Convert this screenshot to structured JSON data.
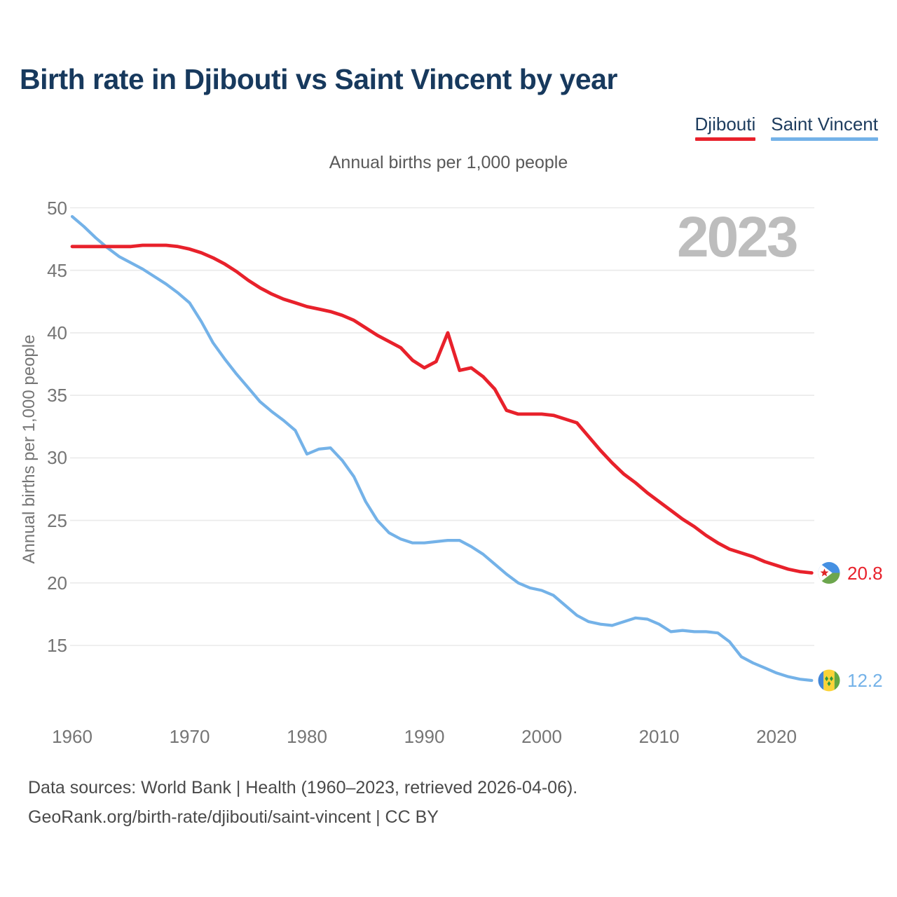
{
  "title": "Birth rate in Djibouti vs Saint Vincent by year",
  "subtitle": "Annual births per 1,000 people",
  "watermark": "2023",
  "legend": [
    {
      "label": "Djibouti",
      "color": "#e8212b"
    },
    {
      "label": "Saint Vincent",
      "color": "#74b2e8"
    }
  ],
  "y_axis": {
    "label": "Annual births per 1,000 people",
    "ticks": [
      50,
      45,
      40,
      35,
      30,
      25,
      20,
      15
    ]
  },
  "x_axis": {
    "ticks": [
      1960,
      1970,
      1980,
      1990,
      2000,
      2010,
      2020
    ]
  },
  "end_labels": [
    {
      "series": "Djibouti",
      "value": "20.8"
    },
    {
      "series": "Saint Vincent",
      "value": "12.2"
    }
  ],
  "footer": {
    "line1": "Data sources: World Bank | Health (1960–2023, retrieved 2026-04-06).",
    "line2": "GeoRank.org/birth-rate/djibouti/saint-vincent | CC BY"
  },
  "chart_data": {
    "type": "line",
    "title": "Birth rate in Djibouti vs Saint Vincent by year",
    "ylabel": "Annual births per 1,000 people",
    "xlim": [
      1960,
      2023
    ],
    "ylim": [
      11,
      51
    ],
    "grid": "horizontal",
    "legend_position": "top-right",
    "x": [
      1960,
      1961,
      1962,
      1963,
      1964,
      1965,
      1966,
      1967,
      1968,
      1969,
      1970,
      1971,
      1972,
      1973,
      1974,
      1975,
      1976,
      1977,
      1978,
      1979,
      1980,
      1981,
      1982,
      1983,
      1984,
      1985,
      1986,
      1987,
      1988,
      1989,
      1990,
      1991,
      1992,
      1993,
      1994,
      1995,
      1996,
      1997,
      1998,
      1999,
      2000,
      2001,
      2002,
      2003,
      2004,
      2005,
      2006,
      2007,
      2008,
      2009,
      2010,
      2011,
      2012,
      2013,
      2014,
      2015,
      2016,
      2017,
      2018,
      2019,
      2020,
      2021,
      2022,
      2023
    ],
    "series": [
      {
        "name": "Djibouti",
        "color": "#e8212b",
        "values": [
          46.9,
          46.9,
          46.9,
          46.9,
          46.9,
          46.9,
          47.0,
          47.0,
          47.0,
          46.9,
          46.7,
          46.4,
          46.0,
          45.5,
          44.9,
          44.2,
          43.6,
          43.1,
          42.7,
          42.4,
          42.1,
          41.9,
          41.7,
          41.4,
          41.0,
          40.4,
          39.8,
          39.3,
          38.8,
          37.8,
          37.2,
          37.7,
          40.0,
          37.0,
          37.2,
          36.5,
          35.5,
          33.8,
          33.5,
          33.5,
          33.5,
          33.4,
          33.1,
          32.8,
          31.7,
          30.6,
          29.6,
          28.7,
          28.0,
          27.2,
          26.5,
          25.8,
          25.1,
          24.5,
          23.8,
          23.2,
          22.7,
          22.4,
          22.1,
          21.7,
          21.4,
          21.1,
          20.9,
          20.8
        ]
      },
      {
        "name": "Saint Vincent",
        "color": "#74b2e8",
        "values": [
          49.3,
          48.5,
          47.6,
          46.8,
          46.1,
          45.6,
          45.1,
          44.5,
          43.9,
          43.2,
          42.4,
          40.9,
          39.2,
          37.9,
          36.7,
          35.6,
          34.5,
          33.7,
          33.0,
          32.2,
          30.3,
          30.7,
          30.8,
          29.8,
          28.5,
          26.5,
          25.0,
          24.0,
          23.5,
          23.2,
          23.2,
          23.3,
          23.4,
          23.4,
          22.9,
          22.3,
          21.5,
          20.7,
          20.0,
          19.6,
          19.4,
          19.0,
          18.2,
          17.4,
          16.9,
          16.7,
          16.6,
          16.9,
          17.2,
          17.1,
          16.7,
          16.1,
          16.2,
          16.1,
          16.1,
          16.0,
          15.3,
          14.1,
          13.6,
          13.2,
          12.8,
          12.5,
          12.3,
          12.2
        ]
      }
    ]
  }
}
